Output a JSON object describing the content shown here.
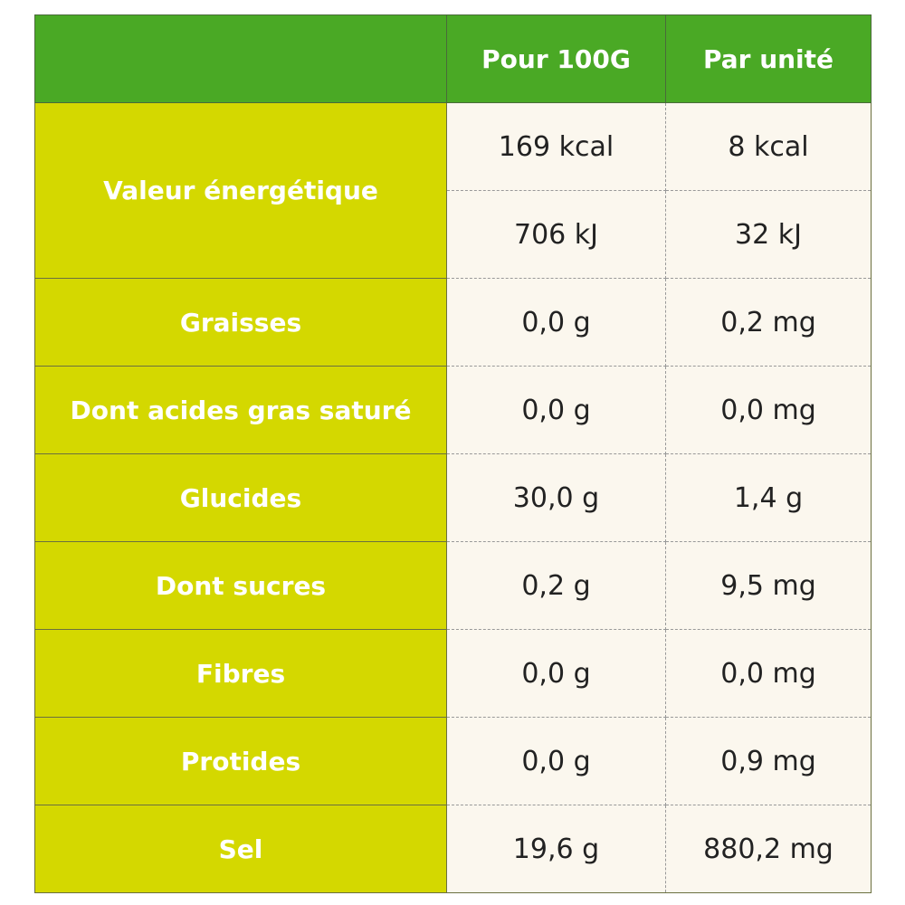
{
  "header": {
    "col1": "",
    "col2": "Pour 100G",
    "col3": "Par unité"
  },
  "colors": {
    "header": "#4aa925",
    "label_column": "#d4d800",
    "values_background": "#fbf7ee"
  },
  "energy": {
    "label": "Valeur énergétique",
    "kcal_100g": "169 kcal",
    "kcal_unit": "8 kcal",
    "kj_100g": "706 kJ",
    "kj_unit": "32 kJ"
  },
  "rows": [
    {
      "label": "Graisses",
      "per100g": "0,0 g",
      "perUnit": "0,2 mg"
    },
    {
      "label": "Dont acides gras saturé",
      "per100g": "0,0 g",
      "perUnit": "0,0 mg"
    },
    {
      "label": "Glucides",
      "per100g": "30,0 g",
      "perUnit": "1,4 g"
    },
    {
      "label": "Dont sucres",
      "per100g": "0,2 g",
      "perUnit": "9,5 mg"
    },
    {
      "label": "Fibres",
      "per100g": "0,0 g",
      "perUnit": "0,0 mg"
    },
    {
      "label": "Protides",
      "per100g": "0,0 g",
      "perUnit": "0,9 mg"
    },
    {
      "label": "Sel",
      "per100g": "19,6 g",
      "perUnit": "880,2 mg"
    }
  ]
}
